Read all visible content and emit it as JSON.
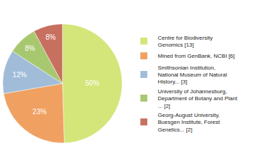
{
  "chart_data": {
    "type": "pie",
    "categories": [
      "Centre for Biodiversity\nGenomics [13]",
      "Mined from GenBank, NCBI [6]",
      "Smithsonian Institution,\nNational Museum of Natural\nHistory... [3]",
      "University of Johannesburg,\nDepartment of Botany and Plant\n... [2]",
      "Georg-August University,\nBuesgen Institute, Forest\nGenetics... [2]"
    ],
    "values": [
      50,
      23,
      12,
      8,
      8
    ],
    "value_labels": [
      "50%",
      "23%",
      "12%",
      "8%",
      "8%"
    ],
    "colors": [
      "#d4e57a",
      "#f0a060",
      "#a0bcd8",
      "#a8c870",
      "#c87060"
    ],
    "data_labels": true,
    "legend": "right"
  }
}
